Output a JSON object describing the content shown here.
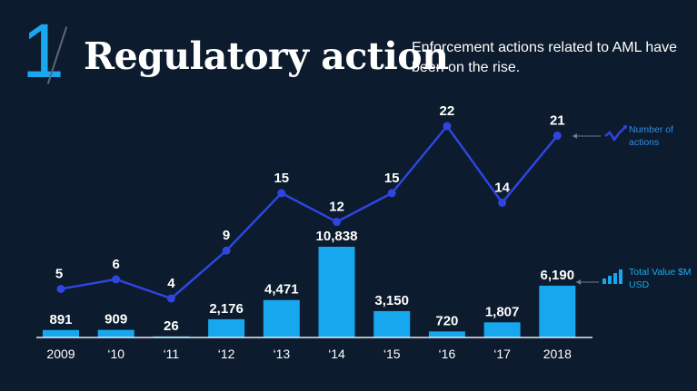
{
  "header": {
    "number": "1",
    "title": "Regulatory action",
    "subtitle": "Enforcement actions related to AML have been on the rise."
  },
  "legend": {
    "line_label": "Number of actions",
    "bar_label": "Total Value $M USD",
    "line_icon": "zigzag-line-icon",
    "bar_icon": "ascending-bars-icon"
  },
  "colors": {
    "background": "#0c1b2d",
    "bars": "#17a7ef",
    "line": "#2f45e0",
    "accent": "#1aa7f0",
    "legend_text": "#2f8fe8"
  },
  "chart_data": {
    "type": "bar",
    "categories": [
      "2009",
      "‘10",
      "‘11",
      "‘12",
      "‘13",
      "‘14",
      "‘15",
      "‘16",
      "‘17",
      "2018"
    ],
    "series": [
      {
        "name": "Total Value $M USD",
        "type": "bar",
        "values": [
          891,
          909,
          26,
          2176,
          4471,
          10838,
          3150,
          720,
          1807,
          6190
        ],
        "labels": [
          "891",
          "909",
          "26",
          "2,176",
          "4,471",
          "10,838",
          "3,150",
          "720",
          "1,807",
          "6,190"
        ]
      },
      {
        "name": "Number of actions",
        "type": "line",
        "values": [
          5,
          6,
          4,
          9,
          15,
          12,
          15,
          22,
          14,
          21
        ],
        "labels": [
          "5",
          "6",
          "4",
          "9",
          "15",
          "12",
          "15",
          "22",
          "14",
          "21"
        ]
      }
    ],
    "title": "Regulatory action",
    "xlabel": "",
    "ylabel": "",
    "grid": false,
    "legend_position": "right"
  }
}
